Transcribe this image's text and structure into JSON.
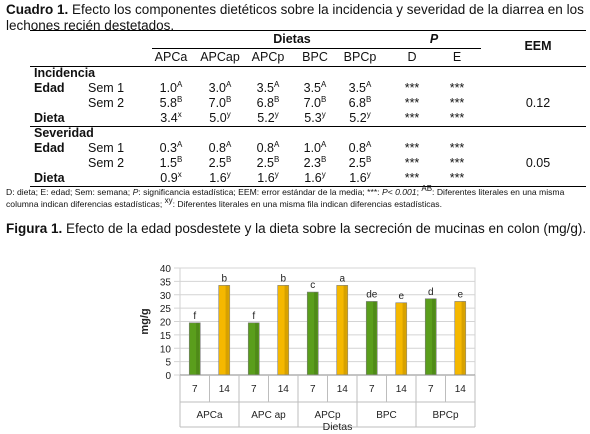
{
  "table_caption": {
    "label": "Cuadro 1.",
    "text": "Efecto los componentes dietéticos sobre la incidencia y severidad de la diarrea en los lechones recién destetados."
  },
  "table": {
    "header_dietas": "Dietas",
    "header_p": "P",
    "header_eem": "EEM",
    "diet_columns": [
      "APCa",
      "APCap",
      "APCp",
      "BPC",
      "BPCp"
    ],
    "p_columns": [
      "D",
      "E"
    ],
    "sections": [
      {
        "title": "Incidencia",
        "group_label": "Edad",
        "rows": [
          {
            "label": "Sem 1",
            "values": [
              [
                "1.0",
                "A"
              ],
              [
                "3.0",
                "A"
              ],
              [
                "3.5",
                "A"
              ],
              [
                "3.5",
                "A"
              ],
              [
                "3.5",
                "A"
              ]
            ],
            "p": [
              "***",
              "***"
            ]
          },
          {
            "label": "Sem 2",
            "values": [
              [
                "5.8",
                "B"
              ],
              [
                "7.0",
                "B"
              ],
              [
                "6.8",
                "B"
              ],
              [
                "7.0",
                "B"
              ],
              [
                "6.8",
                "B"
              ]
            ],
            "p": [
              "***",
              "***"
            ]
          },
          {
            "label": "Dieta",
            "values": [
              [
                "3.4",
                "x"
              ],
              [
                "5.0",
                "y"
              ],
              [
                "5.2",
                "y"
              ],
              [
                "5.3",
                "y"
              ],
              [
                "5.2",
                "y"
              ]
            ],
            "p": [
              "***",
              "***"
            ]
          }
        ],
        "eem": "0.12"
      },
      {
        "title": "Severidad",
        "group_label": "Edad",
        "rows": [
          {
            "label": "Sem 1",
            "values": [
              [
                "0.3",
                "A"
              ],
              [
                "0.8",
                "A"
              ],
              [
                "0.8",
                "A"
              ],
              [
                "1.0",
                "A"
              ],
              [
                "0.8",
                "A"
              ]
            ],
            "p": [
              "***",
              "***"
            ]
          },
          {
            "label": "Sem 2",
            "values": [
              [
                "1.5",
                "B"
              ],
              [
                "2.5",
                "B"
              ],
              [
                "2.5",
                "B"
              ],
              [
                "2.3",
                "B"
              ],
              [
                "2.5",
                "B"
              ]
            ],
            "p": [
              "***",
              "***"
            ]
          },
          {
            "label": "Dieta",
            "values": [
              [
                "0.9",
                "x"
              ],
              [
                "1.6",
                "y"
              ],
              [
                "1.6",
                "y"
              ],
              [
                "1.6",
                "y"
              ],
              [
                "1.6",
                "y"
              ]
            ],
            "p": [
              "***",
              "***"
            ]
          }
        ],
        "eem": "0.05"
      }
    ]
  },
  "table_note": {
    "part1": "D: dieta; E: edad; Sem: semana; ",
    "p_symbol": "P",
    "part2": ": significancia estadística; EEM: error estándar de la media; ***: ",
    "p_value": "P< 0.001",
    "part3": "; ",
    "ab_sup": "AB",
    "part4": ": Diferentes literales en una misma columna indican diferencias estadísticas; ",
    "xy_sup": "xy",
    "part5": ": Diferentes literales en una misma fila indican diferencias estadísticas."
  },
  "figure_caption": {
    "label": "Figura 1.",
    "text": "Efecto de la edad posdestete y la dieta sobre la secreción de mucinas en colon (mg/g)."
  },
  "chart_data": {
    "type": "bar",
    "title": "",
    "xlabel": "Dietas",
    "ylabel": "mg/g",
    "ylim": [
      0,
      40
    ],
    "yticks": [
      0,
      5,
      10,
      15,
      20,
      25,
      30,
      35,
      40
    ],
    "grid": true,
    "groups": [
      "APCa",
      "APC ap",
      "APCp",
      "BPC",
      "BPCp"
    ],
    "sub_categories": [
      "7",
      "14"
    ],
    "series": [
      {
        "sub_category": "7",
        "color": "#5a9e1c",
        "values": [
          19.5,
          19.5,
          31,
          27.5,
          28.5
        ],
        "labels": [
          "f",
          "f",
          "c",
          "de",
          "d"
        ]
      },
      {
        "sub_category": "14",
        "color": "#f5b800",
        "values": [
          33.5,
          33.5,
          33.5,
          27,
          27.5
        ],
        "labels": [
          "b",
          "b",
          "a",
          "e",
          "e"
        ]
      }
    ]
  }
}
